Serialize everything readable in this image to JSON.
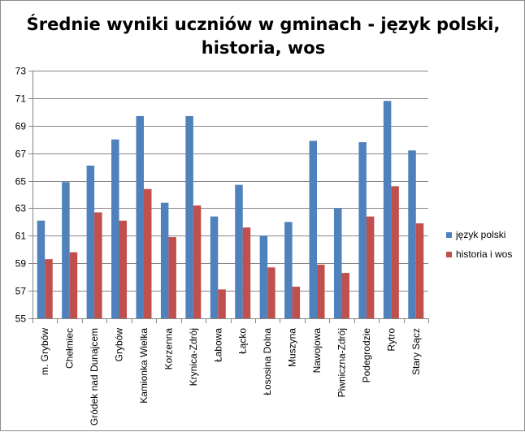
{
  "chart_data": {
    "type": "bar",
    "title_lines": [
      "Średnie wyniki uczniów w gminach - język polski,",
      "historia, wos"
    ],
    "xlabel": "",
    "ylabel": "",
    "ylim": [
      55,
      73
    ],
    "yticks": [
      55,
      57,
      59,
      61,
      63,
      65,
      67,
      69,
      71,
      73
    ],
    "grid": true,
    "legend_position": "right",
    "categories": [
      "m. Grybów",
      "Chełmiec",
      "Gródek nad Dunajcem",
      "Grybów",
      "Kamionka Wielka",
      "Korzenna",
      "Krynica-Zdrój",
      "Łabowa",
      "Łącko",
      "Łososina Dolna",
      "Muszyna",
      "Nawojowa",
      "Piwniczna-Zdrój",
      "Podegrodzie",
      "Rytro",
      "Stary Sącz"
    ],
    "series": [
      {
        "name": "język polski",
        "color": "#4f81bd",
        "values": [
          62.1,
          64.9,
          66.1,
          68.0,
          69.7,
          63.4,
          69.7,
          62.4,
          64.7,
          61.0,
          62.0,
          67.9,
          63.0,
          67.8,
          70.8,
          67.2
        ]
      },
      {
        "name": "historia i wos",
        "color": "#c0504d",
        "values": [
          59.3,
          59.8,
          62.7,
          62.1,
          64.4,
          60.9,
          63.2,
          57.1,
          61.6,
          58.7,
          57.3,
          58.9,
          58.3,
          62.4,
          64.6,
          61.9
        ]
      }
    ]
  }
}
